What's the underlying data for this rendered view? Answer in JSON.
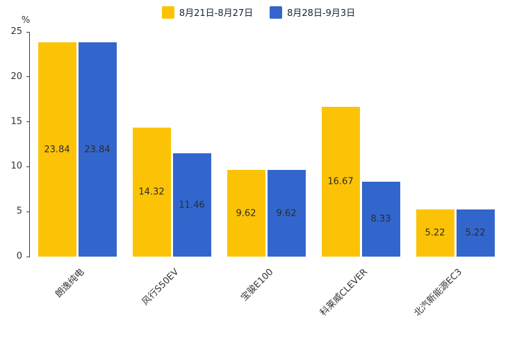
{
  "chart_data": {
    "type": "bar",
    "title": "",
    "categories": [
      "朗逸纯电",
      "风行S50EV",
      "宝骏E100",
      "科莱威CLEVER",
      "北汽新能源EC3"
    ],
    "series": [
      {
        "name": "8月21日-8月27日",
        "color": "#FCC306",
        "values": [
          23.84,
          14.32,
          9.62,
          16.67,
          5.22
        ]
      },
      {
        "name": "8月28日-9月3日",
        "color": "#3366CC",
        "values": [
          23.84,
          11.46,
          9.62,
          8.33,
          5.22
        ]
      }
    ],
    "xlabel": "",
    "ylabel": "%",
    "ylim": [
      0,
      25
    ],
    "yticks": [
      0,
      5,
      10,
      15,
      20,
      25
    ],
    "legend_position": "top",
    "grid": false,
    "value_label_decimals": 2
  }
}
